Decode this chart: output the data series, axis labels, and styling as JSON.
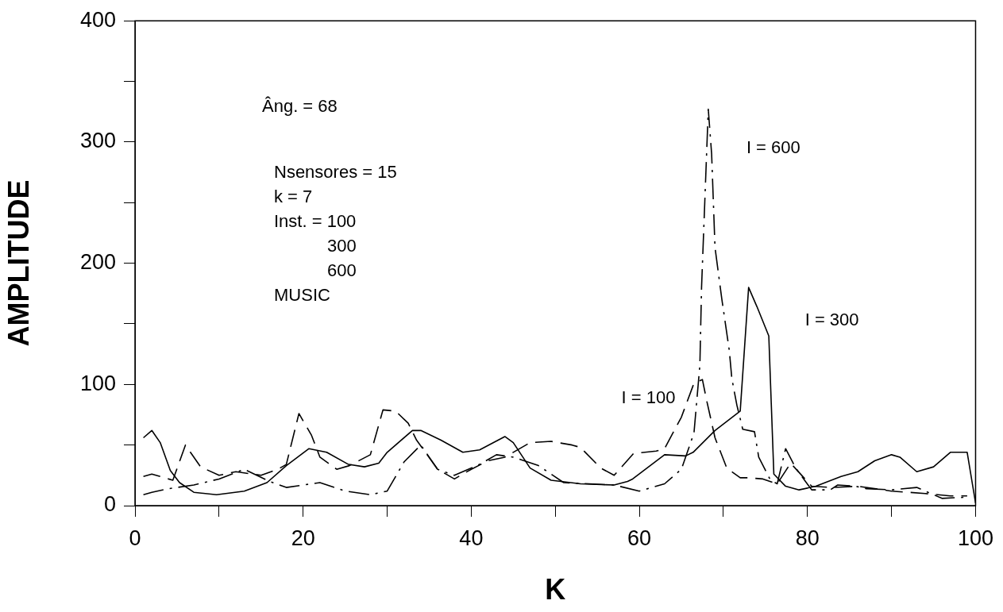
{
  "chart_data": {
    "type": "line",
    "xlabel": "K",
    "ylabel": "AMPLITUDE",
    "xlim": [
      0,
      100
    ],
    "xticks": [
      0,
      {
        "value": 10,
        "label": null
      },
      20,
      {
        "value": 30,
        "label": null
      },
      40,
      {
        "value": 50,
        "label": null
      },
      60,
      {
        "value": 70,
        "label": null
      },
      80,
      {
        "value": 90,
        "label": null
      },
      100
    ],
    "ylim": [
      0,
      400
    ],
    "yticks": [
      0,
      {
        "value": 50,
        "label": null
      },
      100,
      {
        "value": 150,
        "label": null
      },
      200,
      {
        "value": 250,
        "label": null
      },
      300,
      {
        "value": 350,
        "label": null
      },
      400
    ],
    "grid": false,
    "legend": false,
    "marker": "none",
    "annotations": [
      "Âng. = 68",
      "Nsensores = 15",
      "k = 7",
      "Inst. = 100",
      "300",
      "600",
      "MUSIC"
    ],
    "series": [
      {
        "name": "I = 300",
        "color": "#000000",
        "line_style": "solid",
        "x": [
          1,
          2,
          3,
          4.2,
          5.3,
          7,
          9.7,
          13,
          15.7,
          18,
          20.7,
          22.8,
          25.4,
          27.3,
          29,
          30,
          33,
          34,
          36.4,
          39,
          41,
          44,
          45,
          47,
          49.5,
          53,
          57,
          58.6,
          59.2,
          63,
          65.5,
          66.4,
          69,
          72,
          73,
          74,
          75.4,
          76,
          77.4,
          79,
          81,
          84,
          86,
          88,
          90,
          91,
          93,
          95,
          97,
          99,
          100
        ],
        "values": [
          56,
          62,
          52,
          29,
          19,
          11,
          9,
          12,
          19,
          33,
          47,
          44,
          34,
          32,
          35,
          44,
          62,
          62,
          54,
          44,
          46,
          57,
          52,
          31,
          21,
          18,
          17,
          20,
          22,
          42,
          41,
          44,
          62,
          78,
          180,
          164,
          140,
          26,
          16,
          13,
          16,
          24,
          28,
          37,
          42,
          40,
          28,
          32,
          44,
          44,
          2
        ]
      },
      {
        "name": "I = 100",
        "color": "#000000",
        "line_style": "dashed",
        "x": [
          1,
          2,
          4.5,
          6,
          7.8,
          10,
          12,
          15,
          17,
          18,
          19.5,
          21,
          22,
          24,
          25.5,
          28,
          29.5,
          31,
          32.5,
          33.5,
          36,
          38,
          40,
          42,
          44,
          47,
          49.5,
          52,
          53,
          55.4,
          57,
          59.3,
          62,
          63,
          65,
          66.5,
          67.5,
          68,
          69,
          70.4,
          72,
          73,
          74.7,
          76.4,
          78,
          80.5,
          83,
          86,
          90,
          94,
          97,
          99
        ],
        "values": [
          24,
          26,
          21,
          50,
          32,
          25,
          28,
          25,
          30,
          34,
          76,
          58,
          40,
          30,
          33,
          42,
          79,
          78,
          68,
          54,
          30,
          22,
          30,
          37,
          40,
          52,
          53,
          50,
          48,
          31,
          25,
          43,
          45,
          47,
          73,
          101,
          104,
          87,
          56,
          31,
          23,
          23,
          22,
          18,
          35,
          16,
          15,
          16,
          12,
          10,
          8,
          8
        ]
      },
      {
        "name": "I = 600",
        "color": "#000000",
        "line_style": "dotted",
        "x": [
          1,
          2,
          4,
          7,
          10,
          13,
          16,
          18,
          20,
          22,
          25,
          28,
          30,
          32,
          34,
          36,
          38,
          41,
          43,
          45,
          48,
          51,
          54,
          57,
          60,
          63,
          65,
          66.5,
          67.2,
          67.4,
          68.2,
          68.6,
          69,
          69.8,
          70.7,
          71,
          71.6,
          72.3,
          73.7,
          74.2,
          75.6,
          76.4,
          77.4,
          78.6,
          80.5,
          82.7,
          83.6,
          85.7,
          87,
          90,
          93,
          96,
          99
        ],
        "values": [
          9,
          11,
          14,
          17,
          22,
          30,
          20,
          15,
          17,
          19,
          12,
          9,
          12,
          36,
          50,
          30,
          25,
          34,
          42,
          40,
          33,
          19,
          18,
          17,
          12,
          18,
          30,
          60,
          116,
          180,
          327,
          290,
          213,
          171,
          128,
          105,
          83,
          63,
          61,
          40,
          21,
          18,
          47,
          31,
          13,
          13,
          17,
          16,
          14,
          13,
          15,
          6,
          7
        ]
      }
    ]
  }
}
